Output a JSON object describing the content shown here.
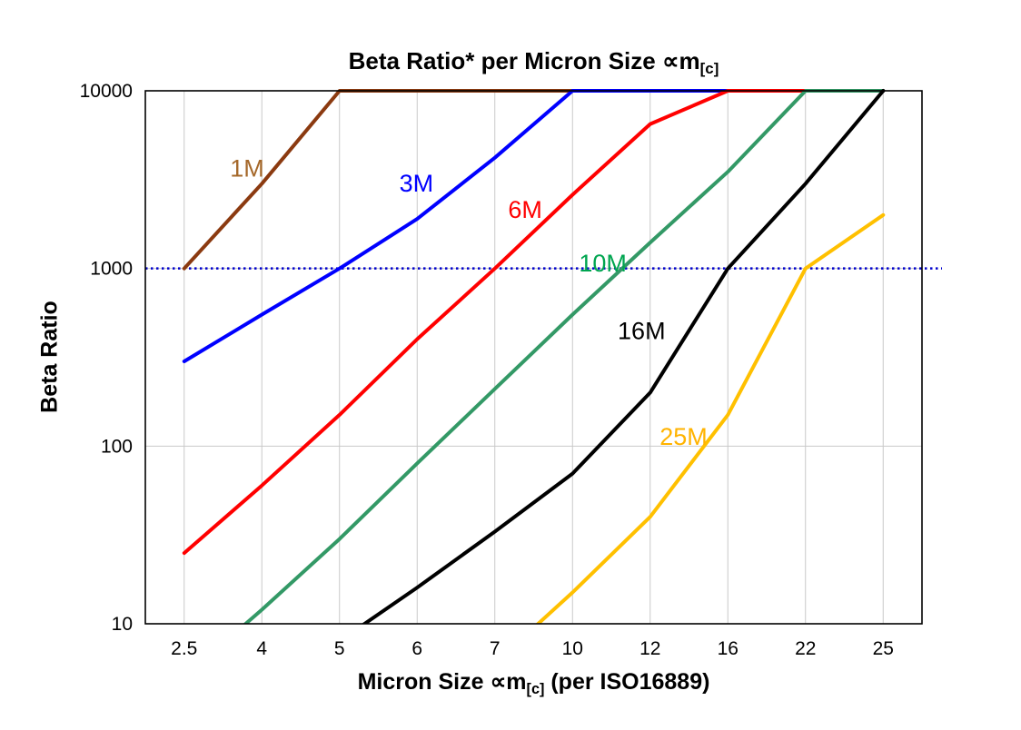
{
  "title": {
    "prefix": "Beta Ratio* per Micron Size ",
    "symbol": "∝m",
    "subscript": "[c]"
  },
  "axes": {
    "y_label": "Beta Ratio",
    "x_label": {
      "prefix": "Micron Size ",
      "symbol": "∝m",
      "subscript": "[c]",
      "suffix": " (per ISO16889)"
    }
  },
  "chart_data": {
    "type": "line",
    "title": "Beta Ratio* per Micron Size ∝m[c]",
    "xlabel": "Micron Size ∝m[c] (per ISO16889)",
    "ylabel": "Beta Ratio",
    "y_scale": "log",
    "ylim": [
      10,
      10000
    ],
    "y_ticks": [
      10,
      100,
      1000,
      10000
    ],
    "x_categories": [
      "2.5",
      "4",
      "5",
      "6",
      "7",
      "10",
      "12",
      "16",
      "22",
      "25"
    ],
    "grid_color": "#C9C9C9",
    "border_color": "#000000",
    "reference_line": {
      "y": 1000,
      "color": "#0000CC",
      "style": "dotted"
    },
    "series": [
      {
        "name": "1M",
        "color": "#8B3A10",
        "values": [
          1000,
          3000,
          10000,
          10000,
          10000,
          10000,
          10000,
          10000,
          10000,
          10000
        ]
      },
      {
        "name": "3M",
        "color": "#0000FF",
        "values": [
          300,
          550,
          1000,
          1900,
          4200,
          10000,
          10000,
          10000,
          10000,
          10000
        ]
      },
      {
        "name": "6M",
        "color": "#FF0000",
        "values": [
          25,
          60,
          150,
          400,
          1000,
          2600,
          6500,
          10000,
          10000,
          10000
        ]
      },
      {
        "name": "10M",
        "color": "#339966",
        "values": [
          5,
          12,
          30,
          80,
          210,
          550,
          1400,
          3500,
          10000,
          10000
        ]
      },
      {
        "name": "16M",
        "color": "#000000",
        "values": [
          null,
          null,
          8,
          16,
          33,
          70,
          200,
          1000,
          3000,
          10000
        ]
      },
      {
        "name": "25M",
        "color": "#FFC000",
        "values": [
          null,
          null,
          null,
          null,
          6,
          15,
          40,
          150,
          1000,
          2000
        ]
      }
    ],
    "annotations": [
      {
        "text": "1M",
        "color": "#A5682A",
        "fx": 0.131,
        "fy": 0.146
      },
      {
        "text": "3M",
        "color": "#0000FF",
        "fx": 0.349,
        "fy": 0.174
      },
      {
        "text": "6M",
        "color": "#FF0000",
        "fx": 0.489,
        "fy": 0.223
      },
      {
        "text": "10M",
        "color": "#00A550",
        "fx": 0.589,
        "fy": 0.324
      },
      {
        "text": "16M",
        "color": "#000000",
        "fx": 0.639,
        "fy": 0.451
      },
      {
        "text": "25M",
        "color": "#FFB300",
        "fx": 0.693,
        "fy": 0.649
      }
    ]
  }
}
